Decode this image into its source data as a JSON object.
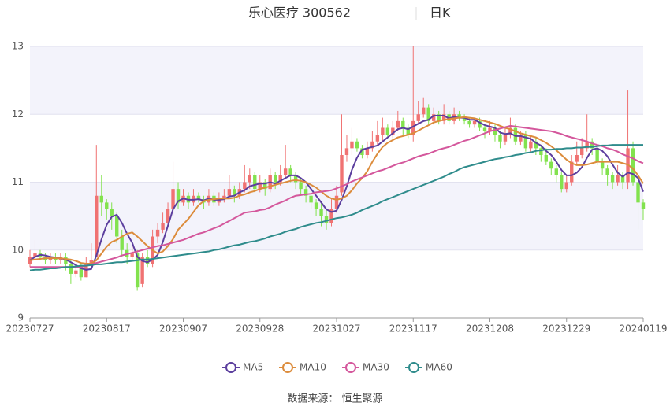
{
  "chart_data": {
    "type": "candlestick",
    "title": "乐心医疗 300562",
    "subtitle": "日K",
    "source": "数据来源： 恒生聚源",
    "ylim": [
      9,
      13
    ],
    "yticks": [
      9,
      10,
      11,
      12,
      13
    ],
    "grid": true,
    "legend": "bottom",
    "up_color": "#f07272",
    "down_color": "#82e24e",
    "categories": [
      "20230727",
      null,
      null,
      null,
      null,
      null,
      null,
      null,
      null,
      null,
      null,
      null,
      null,
      null,
      null,
      "20230817",
      null,
      null,
      null,
      null,
      null,
      null,
      null,
      null,
      null,
      null,
      null,
      null,
      null,
      null,
      "20230907",
      null,
      null,
      null,
      null,
      null,
      null,
      null,
      null,
      null,
      null,
      null,
      null,
      null,
      null,
      "20230928",
      null,
      null,
      null,
      null,
      null,
      null,
      null,
      null,
      null,
      null,
      null,
      null,
      null,
      null,
      "20231027",
      null,
      null,
      null,
      null,
      null,
      null,
      null,
      null,
      null,
      null,
      null,
      null,
      null,
      null,
      "20231117",
      null,
      null,
      null,
      null,
      null,
      null,
      null,
      null,
      null,
      null,
      null,
      null,
      null,
      null,
      "20231208",
      null,
      null,
      null,
      null,
      null,
      null,
      null,
      null,
      null,
      null,
      null,
      null,
      null,
      null,
      "20231229",
      null,
      null,
      null,
      null,
      null,
      null,
      null,
      null,
      null,
      null,
      null,
      null,
      null,
      null,
      "20240119"
    ],
    "candles": [
      [
        9.8,
        9.9,
        9.75,
        10.0
      ],
      [
        9.9,
        9.95,
        9.85,
        10.15
      ],
      [
        9.95,
        9.9,
        9.85,
        10.0
      ],
      [
        9.9,
        9.85,
        9.8,
        9.95
      ],
      [
        9.85,
        9.9,
        9.8,
        9.95
      ],
      [
        9.9,
        9.85,
        9.8,
        9.95
      ],
      [
        9.85,
        9.9,
        9.8,
        9.95
      ],
      [
        9.9,
        9.8,
        9.7,
        9.95
      ],
      [
        9.8,
        9.65,
        9.5,
        9.85
      ],
      [
        9.65,
        9.7,
        9.6,
        9.8
      ],
      [
        9.75,
        9.6,
        9.55,
        9.8
      ],
      [
        9.6,
        9.8,
        9.6,
        9.9
      ],
      [
        9.8,
        9.85,
        9.75,
        10.1
      ],
      [
        9.9,
        10.8,
        9.9,
        11.55
      ],
      [
        10.8,
        10.7,
        10.5,
        11.1
      ],
      [
        10.7,
        10.6,
        10.45,
        10.75
      ],
      [
        10.6,
        10.5,
        10.3,
        10.7
      ],
      [
        10.5,
        10.2,
        10.1,
        10.55
      ],
      [
        10.2,
        10.0,
        9.9,
        10.3
      ],
      [
        10.0,
        9.9,
        9.8,
        10.1
      ],
      [
        9.9,
        9.95,
        9.85,
        10.05
      ],
      [
        9.95,
        9.45,
        9.4,
        10.0
      ],
      [
        9.5,
        9.9,
        9.45,
        9.95
      ],
      [
        9.9,
        9.8,
        9.75,
        10.0
      ],
      [
        9.8,
        10.2,
        9.75,
        10.3
      ],
      [
        10.2,
        10.3,
        10.1,
        10.4
      ],
      [
        10.3,
        10.4,
        10.25,
        10.55
      ],
      [
        10.4,
        10.6,
        10.35,
        10.7
      ],
      [
        10.6,
        10.9,
        10.5,
        11.3
      ],
      [
        10.9,
        10.7,
        10.6,
        11.0
      ],
      [
        10.7,
        10.8,
        10.65,
        10.9
      ],
      [
        10.8,
        10.7,
        10.6,
        10.85
      ],
      [
        10.7,
        10.8,
        10.65,
        10.9
      ],
      [
        10.8,
        10.75,
        10.7,
        10.85
      ],
      [
        10.75,
        10.7,
        10.6,
        10.8
      ],
      [
        10.7,
        10.8,
        10.65,
        10.9
      ],
      [
        10.8,
        10.7,
        10.65,
        10.85
      ],
      [
        10.7,
        10.75,
        10.65,
        10.85
      ],
      [
        10.75,
        10.8,
        10.7,
        10.9
      ],
      [
        10.8,
        10.9,
        10.75,
        11.1
      ],
      [
        10.9,
        10.8,
        10.7,
        10.95
      ],
      [
        10.8,
        10.9,
        10.75,
        11.0
      ],
      [
        10.9,
        11.0,
        10.85,
        11.25
      ],
      [
        11.0,
        11.1,
        10.9,
        11.2
      ],
      [
        11.1,
        10.9,
        10.85,
        11.15
      ],
      [
        10.9,
        11.0,
        10.85,
        11.1
      ],
      [
        11.0,
        10.9,
        10.8,
        11.05
      ],
      [
        10.9,
        11.1,
        10.85,
        11.2
      ],
      [
        11.1,
        11.0,
        10.9,
        11.15
      ],
      [
        11.0,
        11.1,
        10.95,
        11.25
      ],
      [
        11.1,
        11.2,
        11.05,
        11.55
      ],
      [
        11.2,
        11.1,
        11.0,
        11.25
      ],
      [
        11.1,
        11.0,
        10.9,
        11.15
      ],
      [
        11.0,
        10.9,
        10.8,
        11.05
      ],
      [
        10.9,
        10.8,
        10.7,
        10.95
      ],
      [
        10.8,
        10.7,
        10.6,
        10.85
      ],
      [
        10.7,
        10.6,
        10.5,
        10.75
      ],
      [
        10.6,
        10.5,
        10.35,
        10.7
      ],
      [
        10.5,
        10.4,
        10.3,
        10.6
      ],
      [
        10.4,
        10.6,
        10.35,
        10.75
      ],
      [
        10.6,
        10.8,
        10.55,
        10.95
      ],
      [
        10.85,
        11.4,
        10.8,
        12.0
      ],
      [
        11.4,
        11.5,
        11.3,
        11.7
      ],
      [
        11.5,
        11.6,
        11.4,
        11.8
      ],
      [
        11.6,
        11.5,
        11.45,
        11.65
      ],
      [
        11.5,
        11.4,
        11.35,
        11.55
      ],
      [
        11.4,
        11.5,
        11.35,
        11.6
      ],
      [
        11.5,
        11.6,
        11.45,
        11.75
      ],
      [
        11.6,
        11.7,
        11.55,
        11.9
      ],
      [
        11.7,
        11.8,
        11.6,
        11.95
      ],
      [
        11.8,
        11.7,
        11.65,
        11.85
      ],
      [
        11.7,
        11.8,
        11.65,
        11.9
      ],
      [
        11.8,
        11.9,
        11.75,
        12.05
      ],
      [
        11.9,
        11.8,
        11.7,
        11.95
      ],
      [
        11.8,
        11.7,
        11.65,
        11.85
      ],
      [
        11.7,
        11.9,
        11.6,
        13.0
      ],
      [
        11.9,
        12.0,
        11.85,
        12.2
      ],
      [
        12.0,
        12.1,
        11.95,
        12.25
      ],
      [
        12.1,
        11.9,
        11.85,
        12.15
      ],
      [
        11.9,
        12.0,
        11.85,
        12.1
      ],
      [
        12.0,
        11.9,
        11.85,
        12.05
      ],
      [
        11.9,
        12.0,
        11.85,
        12.15
      ],
      [
        12.0,
        11.9,
        11.85,
        12.05
      ],
      [
        11.9,
        12.0,
        11.85,
        12.1
      ],
      [
        12.0,
        11.95,
        11.9,
        12.05
      ],
      [
        11.95,
        11.9,
        11.85,
        12.0
      ],
      [
        11.9,
        11.85,
        11.8,
        11.95
      ],
      [
        11.85,
        11.9,
        11.8,
        11.95
      ],
      [
        11.9,
        11.8,
        11.75,
        11.95
      ],
      [
        11.8,
        11.75,
        11.65,
        11.85
      ],
      [
        11.75,
        11.8,
        11.7,
        11.9
      ],
      [
        11.8,
        11.7,
        11.6,
        11.85
      ],
      [
        11.7,
        11.6,
        11.5,
        11.75
      ],
      [
        11.6,
        11.7,
        11.55,
        11.8
      ],
      [
        11.7,
        11.8,
        11.65,
        11.95
      ],
      [
        11.8,
        11.6,
        11.55,
        11.85
      ],
      [
        11.6,
        11.7,
        11.55,
        11.75
      ],
      [
        11.7,
        11.5,
        11.45,
        11.75
      ],
      [
        11.5,
        11.6,
        11.45,
        11.7
      ],
      [
        11.6,
        11.5,
        11.4,
        11.65
      ],
      [
        11.5,
        11.4,
        11.3,
        11.55
      ],
      [
        11.4,
        11.3,
        11.25,
        11.5
      ],
      [
        11.3,
        11.2,
        11.1,
        11.35
      ],
      [
        11.2,
        11.1,
        11.0,
        11.25
      ],
      [
        11.1,
        10.9,
        10.85,
        11.15
      ],
      [
        10.9,
        11.0,
        10.85,
        11.1
      ],
      [
        11.0,
        11.3,
        10.95,
        11.4
      ],
      [
        11.3,
        11.4,
        11.25,
        11.6
      ],
      [
        11.4,
        11.5,
        11.35,
        11.65
      ],
      [
        11.5,
        11.6,
        11.45,
        12.0
      ],
      [
        11.6,
        11.5,
        11.4,
        11.65
      ],
      [
        11.5,
        11.3,
        11.25,
        11.55
      ],
      [
        11.3,
        11.2,
        11.1,
        11.35
      ],
      [
        11.2,
        11.1,
        10.95,
        11.25
      ],
      [
        11.1,
        11.0,
        10.9,
        11.15
      ],
      [
        11.0,
        11.1,
        10.95,
        11.25
      ],
      [
        11.1,
        11.0,
        10.9,
        11.15
      ],
      [
        11.0,
        11.5,
        10.9,
        12.35
      ],
      [
        11.5,
        11.0,
        10.95,
        11.6
      ],
      [
        11.0,
        10.7,
        10.3,
        11.05
      ],
      [
        10.7,
        10.6,
        10.45,
        10.75
      ]
    ],
    "series": [
      {
        "name": "MA5",
        "color": "#5c3f9e",
        "values": [
          9.85,
          9.9,
          9.93,
          9.92,
          9.9,
          9.89,
          9.88,
          9.86,
          9.82,
          9.78,
          9.73,
          9.71,
          9.72,
          9.92,
          10.16,
          10.37,
          10.49,
          10.52,
          10.4,
          10.24,
          10.11,
          9.9,
          9.84,
          9.82,
          9.86,
          9.93,
          10.12,
          10.36,
          10.6,
          10.72,
          10.76,
          10.74,
          10.74,
          10.75,
          10.73,
          10.76,
          10.74,
          10.74,
          10.75,
          10.79,
          10.8,
          10.85,
          10.88,
          10.94,
          10.96,
          10.98,
          10.98,
          11.0,
          10.98,
          11.02,
          11.06,
          11.1,
          11.1,
          11.06,
          11.0,
          10.9,
          10.8,
          10.7,
          10.6,
          10.56,
          10.58,
          10.74,
          10.94,
          11.18,
          11.36,
          11.48,
          11.5,
          11.52,
          11.54,
          11.6,
          11.66,
          11.72,
          11.78,
          11.8,
          11.78,
          11.82,
          11.86,
          11.9,
          11.92,
          11.98,
          11.98,
          11.98,
          11.94,
          11.96,
          11.95,
          11.95,
          11.92,
          11.92,
          11.88,
          11.84,
          11.82,
          11.8,
          11.73,
          11.71,
          11.72,
          11.68,
          11.68,
          11.66,
          11.64,
          11.58,
          11.54,
          11.46,
          11.4,
          11.3,
          11.18,
          11.1,
          11.1,
          11.14,
          11.22,
          11.36,
          11.48,
          11.5,
          11.46,
          11.38,
          11.26,
          11.14,
          11.08,
          11.14,
          11.12,
          11.06,
          10.86
        ]
      },
      {
        "name": "MA10",
        "color": "#dc8c3c",
        "values": [
          9.85,
          9.86,
          9.87,
          9.88,
          9.88,
          9.88,
          9.88,
          9.87,
          9.86,
          9.84,
          9.81,
          9.8,
          9.8,
          9.85,
          9.95,
          10.05,
          10.12,
          10.15,
          10.2,
          10.24,
          10.26,
          10.2,
          10.13,
          10.06,
          10.0,
          9.95,
          9.98,
          10.06,
          10.16,
          10.3,
          10.38,
          10.46,
          10.56,
          10.66,
          10.72,
          10.74,
          10.75,
          10.76,
          10.76,
          10.76,
          10.77,
          10.8,
          10.82,
          10.85,
          10.87,
          10.9,
          10.92,
          10.94,
          10.96,
          10.98,
          11.0,
          11.02,
          11.03,
          11.02,
          11.0,
          10.96,
          10.92,
          10.86,
          10.8,
          10.76,
          10.74,
          10.76,
          10.8,
          10.88,
          10.98,
          11.06,
          11.16,
          11.3,
          11.42,
          11.52,
          11.58,
          11.62,
          11.66,
          11.68,
          11.7,
          11.72,
          11.76,
          11.8,
          11.84,
          11.88,
          11.9,
          11.92,
          11.93,
          11.94,
          11.95,
          11.96,
          11.95,
          11.94,
          11.92,
          11.9,
          11.88,
          11.86,
          11.83,
          11.8,
          11.78,
          11.75,
          11.72,
          11.7,
          11.68,
          11.66,
          11.62,
          11.58,
          11.53,
          11.47,
          11.4,
          11.33,
          11.28,
          11.25,
          11.25,
          11.26,
          11.28,
          11.3,
          11.3,
          11.3,
          11.3,
          11.3,
          11.28,
          11.26,
          11.2,
          11.1,
          10.98
        ]
      },
      {
        "name": "MA30",
        "color": "#d4579c",
        "values": [
          9.75,
          9.75,
          9.75,
          9.75,
          9.75,
          9.75,
          9.75,
          9.75,
          9.75,
          9.75,
          9.75,
          9.77,
          9.79,
          9.81,
          9.83,
          9.85,
          9.87,
          9.89,
          9.92,
          9.94,
          9.96,
          9.98,
          10.0,
          10.02,
          10.04,
          10.06,
          10.07,
          10.09,
          10.11,
          10.13,
          10.15,
          10.18,
          10.21,
          10.24,
          10.26,
          10.29,
          10.32,
          10.35,
          10.39,
          10.43,
          10.47,
          10.51,
          10.55,
          10.56,
          10.57,
          10.59,
          10.6,
          10.63,
          10.67,
          10.7,
          10.73,
          10.77,
          10.8,
          10.81,
          10.82,
          10.83,
          10.85,
          10.86,
          10.87,
          10.88,
          10.91,
          10.94,
          10.97,
          11.01,
          11.04,
          11.07,
          11.1,
          11.13,
          11.16,
          11.18,
          11.21,
          11.24,
          11.27,
          11.29,
          11.32,
          11.35,
          11.38,
          11.4,
          11.42,
          11.45,
          11.48,
          11.5,
          11.52,
          11.55,
          11.58,
          11.61,
          11.63,
          11.66,
          11.69,
          11.72,
          11.75,
          11.77,
          11.79,
          11.81,
          11.83,
          11.82,
          11.81,
          11.8,
          11.79,
          11.78,
          11.77,
          11.76,
          11.75,
          11.73,
          11.71,
          11.68,
          11.66,
          11.64,
          11.62,
          11.6,
          11.57,
          11.55,
          11.53,
          11.5,
          11.48,
          11.45,
          11.41,
          11.38,
          11.35,
          11.31,
          11.28
        ]
      },
      {
        "name": "MA60",
        "color": "#2f8c8c",
        "values": [
          9.7,
          9.71,
          9.71,
          9.72,
          9.73,
          9.73,
          9.74,
          9.75,
          9.75,
          9.76,
          9.77,
          9.77,
          9.78,
          9.79,
          9.79,
          9.8,
          9.81,
          9.82,
          9.82,
          9.83,
          9.84,
          9.85,
          9.86,
          9.86,
          9.87,
          9.88,
          9.89,
          9.9,
          9.91,
          9.92,
          9.93,
          9.94,
          9.95,
          9.96,
          9.97,
          9.98,
          10.0,
          10.01,
          10.03,
          10.05,
          10.07,
          10.08,
          10.1,
          10.12,
          10.13,
          10.15,
          10.17,
          10.2,
          10.22,
          10.24,
          10.27,
          10.29,
          10.31,
          10.34,
          10.36,
          10.38,
          10.4,
          10.41,
          10.43,
          10.45,
          10.47,
          10.48,
          10.5,
          10.52,
          10.55,
          10.59,
          10.62,
          10.65,
          10.68,
          10.72,
          10.75,
          10.78,
          10.81,
          10.84,
          10.87,
          10.9,
          10.93,
          10.96,
          10.99,
          11.02,
          11.05,
          11.08,
          11.12,
          11.15,
          11.19,
          11.22,
          11.24,
          11.26,
          11.28,
          11.3,
          11.32,
          11.34,
          11.35,
          11.37,
          11.38,
          11.4,
          11.41,
          11.43,
          11.44,
          11.46,
          11.47,
          11.48,
          11.48,
          11.49,
          11.49,
          11.5,
          11.5,
          11.51,
          11.51,
          11.52,
          11.52,
          11.53,
          11.54,
          11.54,
          11.55,
          11.55,
          11.55,
          11.55,
          11.55,
          11.55,
          11.55
        ]
      }
    ]
  }
}
